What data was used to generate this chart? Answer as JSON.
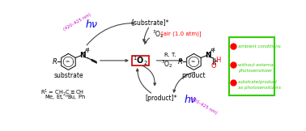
{
  "bg_color": "#ffffff",
  "legend_box_color": "#33cc00",
  "legend_text_color": "#33cc00",
  "legend_dot_color": "#ff0000",
  "legend_items": [
    "ambient conditions",
    "without external\nphotosensitizer",
    "substrate/product\nas photosensitizers"
  ],
  "hv_color": "#0000ee",
  "hv_wavelength_color": "#cc00cc",
  "o2_singlet_box_color": "#cc0000",
  "arrow_color": "#444444",
  "red_text_color": "#ff0000",
  "black": "#000000"
}
